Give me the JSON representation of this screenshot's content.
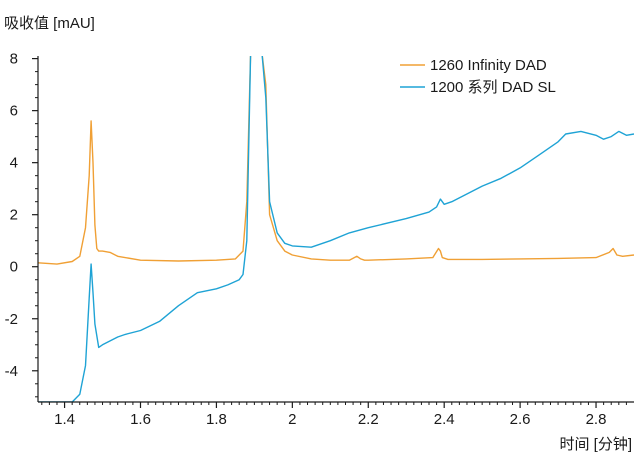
{
  "chart_data": {
    "type": "line",
    "xlabel": "时间 [分钟]",
    "ylabel": "吸收值 [mAU]",
    "xlim": [
      1.33,
      2.9
    ],
    "ylim": [
      -5.2,
      8.1
    ],
    "xticks": [
      1.4,
      1.6,
      1.8,
      2,
      2.2,
      2.4,
      2.6,
      2.8
    ],
    "xtick_labels": [
      "1.4",
      "1.6",
      "1.8",
      "2",
      "2.2",
      "2.4",
      "2.6",
      "2.8"
    ],
    "yticks": [
      8,
      6,
      4,
      2,
      0,
      -2,
      -4
    ],
    "ytick_labels": [
      "8",
      "6",
      "4",
      "2",
      "0",
      "-2",
      "-4"
    ],
    "grid": false,
    "legend_position": "top-right",
    "series": [
      {
        "name": "1260 Infinity DAD",
        "color": "#f0a035",
        "x": [
          1.33,
          1.38,
          1.42,
          1.44,
          1.455,
          1.465,
          1.47,
          1.475,
          1.48,
          1.485,
          1.49,
          1.5,
          1.52,
          1.54,
          1.6,
          1.7,
          1.8,
          1.85,
          1.87,
          1.88,
          1.89,
          1.895,
          1.9,
          1.91,
          1.92,
          1.93,
          1.94,
          1.96,
          1.98,
          2.0,
          2.05,
          2.1,
          2.15,
          2.17,
          2.18,
          2.19,
          2.2,
          2.3,
          2.37,
          2.385,
          2.39,
          2.395,
          2.41,
          2.5,
          2.6,
          2.7,
          2.8,
          2.835,
          2.845,
          2.855,
          2.87,
          2.9
        ],
        "y": [
          0.15,
          0.1,
          0.2,
          0.4,
          1.5,
          3.5,
          5.6,
          4.0,
          1.6,
          0.7,
          0.6,
          0.6,
          0.55,
          0.4,
          0.25,
          0.22,
          0.25,
          0.3,
          0.6,
          2.5,
          8.2,
          8.2,
          8.2,
          8.2,
          8.2,
          7.0,
          2.0,
          1.0,
          0.6,
          0.45,
          0.3,
          0.25,
          0.25,
          0.4,
          0.3,
          0.25,
          0.25,
          0.3,
          0.35,
          0.7,
          0.6,
          0.35,
          0.28,
          0.28,
          0.3,
          0.32,
          0.35,
          0.55,
          0.7,
          0.45,
          0.4,
          0.45
        ]
      },
      {
        "name": "1200  系列  DAD SL",
        "color": "#1fa3d5",
        "x": [
          1.33,
          1.42,
          1.44,
          1.455,
          1.465,
          1.47,
          1.475,
          1.48,
          1.49,
          1.5,
          1.52,
          1.54,
          1.56,
          1.6,
          1.65,
          1.7,
          1.75,
          1.8,
          1.83,
          1.86,
          1.87,
          1.88,
          1.89,
          1.895,
          1.9,
          1.91,
          1.92,
          1.93,
          1.94,
          1.96,
          1.98,
          2.0,
          2.05,
          2.1,
          2.15,
          2.2,
          2.3,
          2.36,
          2.38,
          2.39,
          2.4,
          2.42,
          2.5,
          2.55,
          2.6,
          2.65,
          2.7,
          2.72,
          2.76,
          2.8,
          2.82,
          2.84,
          2.86,
          2.88,
          2.9
        ],
        "y": [
          -5.2,
          -5.2,
          -4.9,
          -3.8,
          -1.2,
          0.1,
          -1.0,
          -2.2,
          -3.1,
          -3.0,
          -2.85,
          -2.7,
          -2.6,
          -2.45,
          -2.1,
          -1.5,
          -1.0,
          -0.85,
          -0.7,
          -0.5,
          -0.3,
          1.0,
          8.2,
          8.2,
          8.2,
          8.2,
          8.2,
          6.5,
          2.5,
          1.3,
          0.9,
          0.8,
          0.75,
          1.0,
          1.3,
          1.5,
          1.85,
          2.1,
          2.3,
          2.6,
          2.4,
          2.5,
          3.1,
          3.4,
          3.8,
          4.3,
          4.8,
          5.1,
          5.2,
          5.05,
          4.9,
          5.0,
          5.2,
          5.05,
          5.1
        ]
      }
    ]
  }
}
